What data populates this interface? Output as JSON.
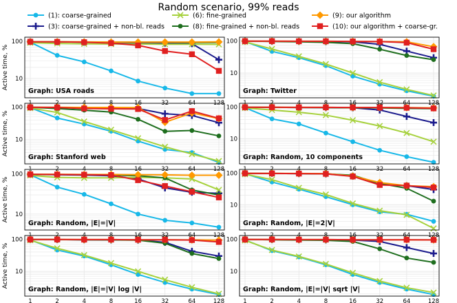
{
  "figure_title": "Random scenario, 99% reads",
  "colors": {
    "s1": "#17b8e8",
    "s3": "#1a1a8c",
    "s6": "#a6d13c",
    "s8": "#1e6e1e",
    "s9": "#ff9900",
    "s10": "#e02020"
  },
  "chart_data": [
    {
      "type": "line",
      "title": "Graph: USA roads",
      "xlabel": "",
      "ylabel": "Active time, %",
      "x": [
        1,
        2,
        4,
        8,
        16,
        32,
        64,
        128
      ],
      "y_scale": "log",
      "ylim": [
        3,
        130
      ],
      "grid": true,
      "series": [
        {
          "name": "(1): coarse-grained",
          "color": "s1",
          "marker": "dot",
          "values": [
            95,
            42,
            28,
            16,
            8.5,
            5.5,
            3.9,
            3.9
          ]
        },
        {
          "name": "(3): coarse-grained + non-bl. reads",
          "color": "s3",
          "marker": "plus",
          "values": [
            98,
            97,
            95,
            94,
            92,
            90,
            87,
            32
          ]
        },
        {
          "name": "(6): fine-grained",
          "color": "s6",
          "marker": "x",
          "values": [
            92,
            88,
            86,
            85,
            85,
            84,
            84,
            83
          ]
        },
        {
          "name": "(8): fine-grained + non-bl. reads",
          "color": "s8",
          "marker": "dot",
          "values": [
            98,
            97,
            96,
            95,
            95,
            95,
            93,
            94
          ]
        },
        {
          "name": "(9): our algorithm",
          "color": "s9",
          "marker": "diamond",
          "values": [
            98,
            98,
            97,
            96,
            96,
            96,
            96,
            97
          ]
        },
        {
          "name": "(10): our algorithm + coarse-gr.",
          "color": "s10",
          "marker": "square",
          "values": [
            98,
            97,
            95,
            90,
            78,
            55,
            45,
            16
          ]
        }
      ]
    },
    {
      "type": "line",
      "title": "Graph: Twitter",
      "xlabel": "",
      "ylabel": "",
      "x": [
        1,
        2,
        4,
        8,
        16,
        32,
        64,
        128
      ],
      "y_scale": "log",
      "ylim": [
        1.7,
        130
      ],
      "grid": true,
      "series": [
        {
          "name": "(1): coarse-grained",
          "color": "s1",
          "marker": "dot",
          "values": [
            95,
            47,
            30,
            17,
            8,
            4.5,
            2.8,
            1.9
          ]
        },
        {
          "name": "(3): coarse-grained + non-bl. reads",
          "color": "s3",
          "marker": "plus",
          "values": [
            98,
            97,
            96,
            95,
            93,
            78,
            48,
            30
          ]
        },
        {
          "name": "(6): fine-grained",
          "color": "s6",
          "marker": "x",
          "values": [
            93,
            56,
            33,
            19,
            10,
            5.2,
            3.1,
            2.0
          ]
        },
        {
          "name": "(8): fine-grained + non-bl. reads",
          "color": "s8",
          "marker": "dot",
          "values": [
            98,
            96,
            93,
            90,
            82,
            55,
            35,
            26
          ]
        },
        {
          "name": "(9): our algorithm",
          "color": "s9",
          "marker": "diamond",
          "values": [
            98,
            98,
            97,
            97,
            96,
            95,
            93,
            66
          ]
        },
        {
          "name": "(10): our algorithm + coarse-gr.",
          "color": "s10",
          "marker": "square",
          "values": [
            98,
            98,
            97,
            97,
            96,
            95,
            88,
            55
          ]
        }
      ]
    },
    {
      "type": "line",
      "title": "Graph: Stanford web",
      "xlabel": "",
      "ylabel": "Active time, %",
      "x": [
        1,
        2,
        4,
        8,
        16,
        32,
        64,
        128
      ],
      "y_scale": "log",
      "ylim": [
        1.8,
        130
      ],
      "grid": true,
      "series": [
        {
          "name": "(1): coarse-grained",
          "color": "s1",
          "marker": "dot",
          "values": [
            95,
            46,
            30,
            18,
            9,
            5,
            4.0,
            2.0
          ]
        },
        {
          "name": "(3): coarse-grained + non-bl. reads",
          "color": "s3",
          "marker": "plus",
          "values": [
            98,
            96,
            94,
            92,
            90,
            62,
            55,
            33
          ]
        },
        {
          "name": "(6): fine-grained",
          "color": "s6",
          "marker": "x",
          "values": [
            93,
            68,
            36,
            20,
            11,
            6,
            3.6,
            2.2
          ]
        },
        {
          "name": "(8): fine-grained + non-bl. reads",
          "color": "s8",
          "marker": "dot",
          "values": [
            98,
            90,
            80,
            70,
            42,
            18,
            19,
            13
          ]
        },
        {
          "name": "(9): our algorithm",
          "color": "s9",
          "marker": "diamond",
          "values": [
            98,
            98,
            97,
            97,
            96,
            34,
            66,
            44
          ]
        },
        {
          "name": "(10): our algorithm + coarse-gr.",
          "color": "s10",
          "marker": "square",
          "values": [
            98,
            97,
            90,
            88,
            87,
            40,
            75,
            45
          ]
        }
      ]
    },
    {
      "type": "line",
      "title": "Graph: Random, 10 components",
      "xlabel": "",
      "ylabel": "",
      "x": [
        1,
        2,
        4,
        8,
        16,
        32,
        64,
        128
      ],
      "y_scale": "log",
      "ylim": [
        1.6,
        130
      ],
      "grid": true,
      "series": [
        {
          "name": "(1): coarse-grained",
          "color": "s1",
          "marker": "dot",
          "values": [
            95,
            42,
            29,
            15,
            8,
            4.3,
            2.7,
            1.8
          ]
        },
        {
          "name": "(3): coarse-grained + non-bl. reads",
          "color": "s3",
          "marker": "plus",
          "values": [
            98,
            97,
            96,
            95,
            94,
            80,
            50,
            32
          ]
        },
        {
          "name": "(6): fine-grained",
          "color": "s6",
          "marker": "x",
          "values": [
            93,
            80,
            68,
            55,
            38,
            25,
            15,
            8
          ]
        },
        {
          "name": "(8): fine-grained + non-bl. reads",
          "color": "s8",
          "marker": "dot",
          "values": [
            98,
            97,
            96,
            95,
            94,
            93,
            90,
            88
          ]
        },
        {
          "name": "(9): our algorithm",
          "color": "s9",
          "marker": "diamond",
          "values": [
            98,
            98,
            97,
            97,
            96,
            96,
            95,
            93
          ]
        },
        {
          "name": "(10): our algorithm + coarse-gr.",
          "color": "s10",
          "marker": "square",
          "values": [
            98,
            98,
            97,
            97,
            96,
            96,
            94,
            90
          ]
        }
      ]
    },
    {
      "type": "line",
      "title": "Graph: Random, |E|=|V|",
      "xlabel": "",
      "ylabel": "Active time, %",
      "x": [
        1,
        2,
        4,
        8,
        16,
        32,
        64,
        128
      ],
      "y_scale": "log",
      "ylim": [
        4,
        130
      ],
      "grid": true,
      "series": [
        {
          "name": "(1): coarse-grained",
          "color": "s1",
          "marker": "dot",
          "values": [
            95,
            47,
            31,
            18,
            10,
            7,
            6,
            4.7
          ]
        },
        {
          "name": "(3): coarse-grained + non-bl. reads",
          "color": "s3",
          "marker": "plus",
          "values": [
            98,
            96,
            94,
            90,
            75,
            45,
            35,
            33
          ]
        },
        {
          "name": "(6): fine-grained",
          "color": "s6",
          "marker": "x",
          "values": [
            92,
            82,
            80,
            80,
            82,
            80,
            75,
            40
          ]
        },
        {
          "name": "(8): fine-grained + non-bl. reads",
          "color": "s8",
          "marker": "dot",
          "values": [
            98,
            97,
            96,
            94,
            90,
            80,
            40,
            30
          ]
        },
        {
          "name": "(9): our algorithm",
          "color": "s9",
          "marker": "diamond",
          "values": [
            98,
            98,
            97,
            97,
            96,
            95,
            93,
            93
          ]
        },
        {
          "name": "(10): our algorithm + coarse-gr.",
          "color": "s10",
          "marker": "square",
          "values": [
            98,
            97,
            96,
            94,
            70,
            50,
            36,
            26
          ]
        }
      ]
    },
    {
      "type": "line",
      "title": "Graph: Random, |E|=2|V|",
      "xlabel": "",
      "ylabel": "",
      "x": [
        1,
        2,
        4,
        8,
        16,
        32,
        64,
        128
      ],
      "y_scale": "log",
      "ylim": [
        1.6,
        130
      ],
      "grid": true,
      "series": [
        {
          "name": "(1): coarse-grained",
          "color": "s1",
          "marker": "dot",
          "values": [
            95,
            52,
            31,
            18,
            10,
            6,
            5,
            3
          ]
        },
        {
          "name": "(3): coarse-grained + non-bl. reads",
          "color": "s3",
          "marker": "plus",
          "values": [
            98,
            97,
            96,
            94,
            80,
            45,
            40,
            30
          ]
        },
        {
          "name": "(6): fine-grained",
          "color": "s6",
          "marker": "x",
          "values": [
            92,
            62,
            34,
            21,
            11,
            6.5,
            4.8,
            1.8
          ]
        },
        {
          "name": "(8): fine-grained + non-bl. reads",
          "color": "s8",
          "marker": "dot",
          "values": [
            98,
            97,
            96,
            94,
            85,
            47,
            33,
            13
          ]
        },
        {
          "name": "(9): our algorithm",
          "color": "s9",
          "marker": "diamond",
          "values": [
            98,
            98,
            97,
            96,
            80,
            50,
            40,
            37
          ]
        },
        {
          "name": "(10): our algorithm + coarse-gr.",
          "color": "s10",
          "marker": "square",
          "values": [
            98,
            97,
            96,
            94,
            78,
            42,
            40,
            35
          ]
        }
      ]
    },
    {
      "type": "line",
      "title": "Graph: Random, |E|=|V| log |V|",
      "xlabel": "Threads",
      "ylabel": "Active time, %",
      "x": [
        1,
        2,
        4,
        8,
        16,
        32,
        64,
        128
      ],
      "y_scale": "log",
      "ylim": [
        1.7,
        130
      ],
      "grid": true,
      "series": [
        {
          "name": "(1): coarse-grained",
          "color": "s1",
          "marker": "dot",
          "values": [
            95,
            46,
            30,
            16,
            8,
            4.5,
            2.8,
            1.9
          ]
        },
        {
          "name": "(3): coarse-grained + non-bl. reads",
          "color": "s3",
          "marker": "plus",
          "values": [
            98,
            97,
            96,
            95,
            94,
            80,
            42,
            30
          ]
        },
        {
          "name": "(6): fine-grained",
          "color": "s6",
          "marker": "x",
          "values": [
            93,
            52,
            32,
            18,
            10,
            5.5,
            3.2,
            2.0
          ]
        },
        {
          "name": "(8): fine-grained + non-bl. reads",
          "color": "s8",
          "marker": "dot",
          "values": [
            98,
            97,
            96,
            95,
            93,
            75,
            36,
            25
          ]
        },
        {
          "name": "(9): our algorithm",
          "color": "s9",
          "marker": "diamond",
          "values": [
            98,
            98,
            97,
            97,
            96,
            96,
            95,
            93
          ]
        },
        {
          "name": "(10): our algorithm + coarse-gr.",
          "color": "s10",
          "marker": "square",
          "values": [
            98,
            98,
            97,
            97,
            96,
            96,
            94,
            82
          ]
        }
      ]
    },
    {
      "type": "line",
      "title": "Graph: Random, |E|=|V| sqrt |V|",
      "xlabel": "Threads",
      "ylabel": "",
      "x": [
        1,
        2,
        4,
        8,
        16,
        32,
        64,
        128
      ],
      "y_scale": "log",
      "ylim": [
        1.7,
        130
      ],
      "grid": true,
      "series": [
        {
          "name": "(1): coarse-grained",
          "color": "s1",
          "marker": "dot",
          "values": [
            95,
            44,
            28,
            16,
            8,
            4.5,
            2.8,
            1.9
          ]
        },
        {
          "name": "(3): coarse-grained + non-bl. reads",
          "color": "s3",
          "marker": "plus",
          "values": [
            98,
            97,
            96,
            95,
            94,
            85,
            55,
            36
          ]
        },
        {
          "name": "(6): fine-grained",
          "color": "s6",
          "marker": "x",
          "values": [
            92,
            46,
            29,
            17,
            9,
            5,
            3.1,
            2.2
          ]
        },
        {
          "name": "(8): fine-grained + non-bl. reads",
          "color": "s8",
          "marker": "dot",
          "values": [
            98,
            96,
            94,
            92,
            85,
            50,
            26,
            19
          ]
        },
        {
          "name": "(9): our algorithm",
          "color": "s9",
          "marker": "diamond",
          "values": [
            98,
            98,
            97,
            97,
            96,
            96,
            96,
            95
          ]
        },
        {
          "name": "(10): our algorithm + coarse-gr.",
          "color": "s10",
          "marker": "square",
          "values": [
            98,
            98,
            97,
            97,
            96,
            96,
            96,
            95
          ]
        }
      ]
    }
  ],
  "legend": {
    "placement": "top",
    "items": [
      {
        "label": "(1): coarse-grained",
        "color": "s1",
        "marker": "dot"
      },
      {
        "label": "(6): fine-grained",
        "color": "s6",
        "marker": "x"
      },
      {
        "label": "(9): our algorithm",
        "color": "s9",
        "marker": "diamond"
      },
      {
        "label": "(3): coarse-grained + non-bl. reads",
        "color": "s3",
        "marker": "plus"
      },
      {
        "label": "(8): fine-grained + non-bl. reads",
        "color": "s8",
        "marker": "dot"
      },
      {
        "label": "(10): our algorithm + coarse-gr.",
        "color": "s10",
        "marker": "square"
      }
    ]
  }
}
